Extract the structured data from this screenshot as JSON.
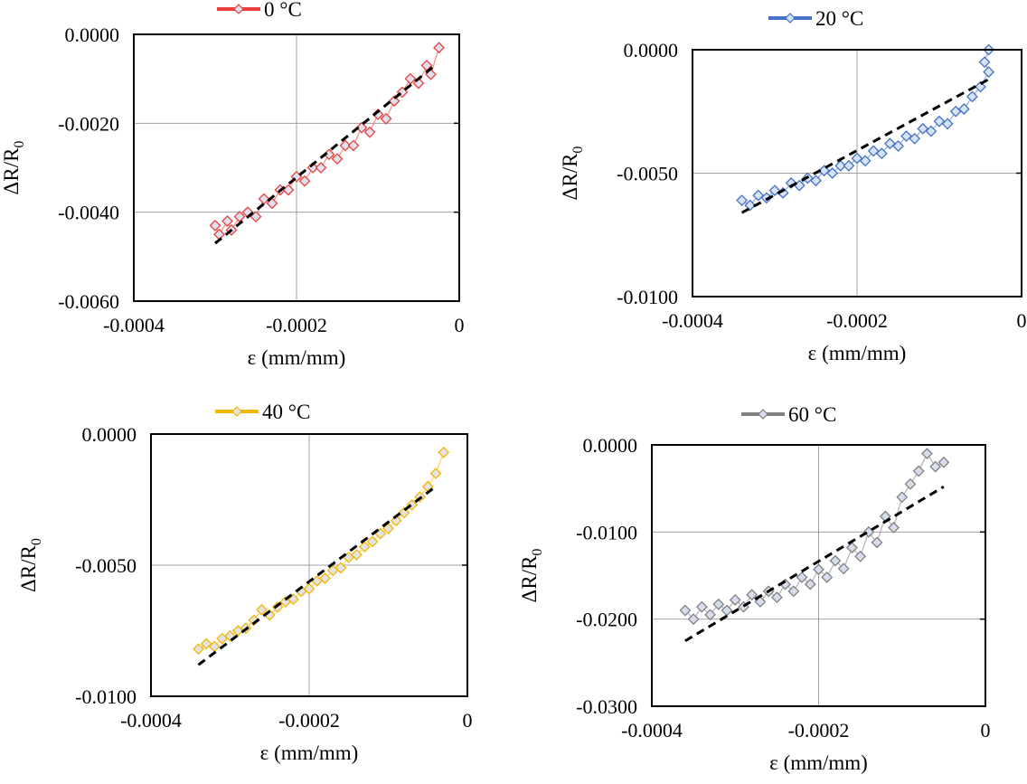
{
  "chart_data": [
    {
      "type": "scatter",
      "legend": "0 °C",
      "legend_position": "top",
      "color": "#e8403c",
      "marker": "diamond",
      "marker_fill": "#dfe1ef",
      "xlabel": "ε (mm/mm)",
      "ylabel": "ΔR/R",
      "ylabel_sub": "0",
      "xlim": [
        -0.0004,
        0
      ],
      "ylim": [
        -0.006,
        0
      ],
      "xticks": [
        "-0.0004",
        "-0.0002",
        "0"
      ],
      "yticks": [
        "0.0000",
        "-0.0020",
        "-0.0040",
        "-0.0060"
      ],
      "xtick_values": [
        -0.0004,
        -0.0002,
        0
      ],
      "ytick_values": [
        0,
        -0.002,
        -0.004,
        -0.006
      ],
      "grid": true,
      "points": [
        [
          -0.0003,
          -0.0043
        ],
        [
          -0.000295,
          -0.0045
        ],
        [
          -0.000285,
          -0.0042
        ],
        [
          -0.00028,
          -0.0044
        ],
        [
          -0.00027,
          -0.0041
        ],
        [
          -0.00026,
          -0.004
        ],
        [
          -0.00025,
          -0.0041
        ],
        [
          -0.00024,
          -0.0037
        ],
        [
          -0.00023,
          -0.0038
        ],
        [
          -0.00022,
          -0.0035
        ],
        [
          -0.00021,
          -0.0035
        ],
        [
          -0.0002,
          -0.0032
        ],
        [
          -0.00019,
          -0.0033
        ],
        [
          -0.00018,
          -0.003
        ],
        [
          -0.00017,
          -0.003
        ],
        [
          -0.00016,
          -0.0027
        ],
        [
          -0.00015,
          -0.0028
        ],
        [
          -0.00014,
          -0.0025
        ],
        [
          -0.00013,
          -0.0025
        ],
        [
          -0.00012,
          -0.0021
        ],
        [
          -0.00011,
          -0.0022
        ],
        [
          -0.0001,
          -0.0018
        ],
        [
          -9e-05,
          -0.0019
        ],
        [
          -8e-05,
          -0.0015
        ],
        [
          -7e-05,
          -0.0013
        ],
        [
          -6e-05,
          -0.001
        ],
        [
          -5e-05,
          -0.0011
        ],
        [
          -4e-05,
          -0.0007
        ],
        [
          -3.5e-05,
          -0.0009
        ],
        [
          -2.5e-05,
          -0.0003
        ]
      ],
      "trendline": [
        [
          -0.0003,
          -0.0047
        ],
        [
          -3e-05,
          -0.0007
        ]
      ]
    },
    {
      "type": "scatter",
      "legend": "20 °C",
      "legend_position": "top",
      "color": "#4472c4",
      "marker": "diamond",
      "marker_fill": "#d6e3f5",
      "xlabel": "ε (mm/mm)",
      "ylabel": "ΔR/R",
      "ylabel_sub": "0",
      "xlim": [
        -0.0004,
        0
      ],
      "ylim": [
        -0.01,
        0
      ],
      "xticks": [
        "-0.0004",
        "-0.0002",
        "0"
      ],
      "yticks": [
        "0.0000",
        "-0.0050",
        "-0.0100"
      ],
      "xtick_values": [
        -0.0004,
        -0.0002,
        0
      ],
      "ytick_values": [
        0,
        -0.005,
        -0.01
      ],
      "grid": true,
      "points": [
        [
          -0.00034,
          -0.0061
        ],
        [
          -0.00033,
          -0.0063
        ],
        [
          -0.00032,
          -0.0059
        ],
        [
          -0.00031,
          -0.006
        ],
        [
          -0.0003,
          -0.0057
        ],
        [
          -0.00029,
          -0.0058
        ],
        [
          -0.00028,
          -0.0054
        ],
        [
          -0.00027,
          -0.0055
        ],
        [
          -0.00026,
          -0.0052
        ],
        [
          -0.00025,
          -0.0053
        ],
        [
          -0.00024,
          -0.0049
        ],
        [
          -0.00023,
          -0.005
        ],
        [
          -0.00022,
          -0.0047
        ],
        [
          -0.00021,
          -0.0047
        ],
        [
          -0.0002,
          -0.0044
        ],
        [
          -0.00019,
          -0.0045
        ],
        [
          -0.00018,
          -0.0041
        ],
        [
          -0.00017,
          -0.0042
        ],
        [
          -0.00016,
          -0.0038
        ],
        [
          -0.00015,
          -0.0039
        ],
        [
          -0.00014,
          -0.0035
        ],
        [
          -0.00013,
          -0.0036
        ],
        [
          -0.00012,
          -0.0032
        ],
        [
          -0.00011,
          -0.0033
        ],
        [
          -0.0001,
          -0.0029
        ],
        [
          -9e-05,
          -0.003
        ],
        [
          -8e-05,
          -0.0025
        ],
        [
          -7e-05,
          -0.0024
        ],
        [
          -6e-05,
          -0.0019
        ],
        [
          -5e-05,
          -0.0015
        ],
        [
          -4e-05,
          -0.0009
        ],
        [
          -4.5e-05,
          -0.0005
        ],
        [
          -4e-05,
          0.0
        ]
      ],
      "trendline": [
        [
          -0.00034,
          -0.0066
        ],
        [
          -4e-05,
          -0.0012
        ]
      ]
    },
    {
      "type": "scatter",
      "legend": "40 °C",
      "legend_position": "top",
      "color": "#f2b705",
      "marker": "diamond",
      "marker_fill": "#e3e3e3",
      "xlabel": "ε (mm/mm)",
      "ylabel": "ΔR/R",
      "ylabel_sub": "0",
      "xlim": [
        -0.0004,
        0
      ],
      "ylim": [
        -0.01,
        0
      ],
      "xticks": [
        "-0.0004",
        "-0.0002",
        "0"
      ],
      "yticks": [
        "0.0000",
        "-0.0050",
        "-0.0100"
      ],
      "xtick_values": [
        -0.0004,
        -0.0002,
        0
      ],
      "ytick_values": [
        0,
        -0.005,
        -0.01
      ],
      "grid": true,
      "points": [
        [
          -0.00034,
          -0.0082
        ],
        [
          -0.00033,
          -0.008
        ],
        [
          -0.00032,
          -0.0081
        ],
        [
          -0.00031,
          -0.0078
        ],
        [
          -0.0003,
          -0.0077
        ],
        [
          -0.00029,
          -0.0075
        ],
        [
          -0.00028,
          -0.0074
        ],
        [
          -0.00027,
          -0.0071
        ],
        [
          -0.00026,
          -0.0067
        ],
        [
          -0.00025,
          -0.0069
        ],
        [
          -0.00024,
          -0.0066
        ],
        [
          -0.00023,
          -0.0064
        ],
        [
          -0.00022,
          -0.0063
        ],
        [
          -0.00021,
          -0.006
        ],
        [
          -0.0002,
          -0.0059
        ],
        [
          -0.00019,
          -0.0056
        ],
        [
          -0.00018,
          -0.0055
        ],
        [
          -0.00017,
          -0.0052
        ],
        [
          -0.00016,
          -0.0051
        ],
        [
          -0.00015,
          -0.0047
        ],
        [
          -0.00014,
          -0.0046
        ],
        [
          -0.00013,
          -0.0043
        ],
        [
          -0.00012,
          -0.0041
        ],
        [
          -0.00011,
          -0.0038
        ],
        [
          -0.0001,
          -0.0036
        ],
        [
          -9e-05,
          -0.0033
        ],
        [
          -8e-05,
          -0.003
        ],
        [
          -7e-05,
          -0.0027
        ],
        [
          -6e-05,
          -0.0024
        ],
        [
          -5e-05,
          -0.002
        ],
        [
          -4e-05,
          -0.0015
        ],
        [
          -3e-05,
          -0.0007
        ]
      ],
      "trendline": [
        [
          -0.00034,
          -0.0088
        ],
        [
          -4e-05,
          -0.002
        ]
      ]
    },
    {
      "type": "scatter",
      "legend": "60 °C",
      "legend_position": "top",
      "color": "#808080",
      "marker": "diamond",
      "marker_fill": "#d6deee",
      "xlabel": "ε (mm/mm)",
      "ylabel": "ΔR/R",
      "ylabel_sub": "0",
      "xlim": [
        -0.0004,
        0
      ],
      "ylim": [
        -0.03,
        0
      ],
      "xticks": [
        "-0.0004",
        "-0.0002",
        "0"
      ],
      "yticks": [
        "0.0000",
        "-0.0100",
        "-0.0200",
        "-0.0300"
      ],
      "xtick_values": [
        -0.0004,
        -0.0002,
        0
      ],
      "ytick_values": [
        0,
        -0.01,
        -0.02,
        -0.03
      ],
      "grid": true,
      "points": [
        [
          -0.00036,
          -0.019
        ],
        [
          -0.00035,
          -0.02
        ],
        [
          -0.00034,
          -0.0186
        ],
        [
          -0.00033,
          -0.0195
        ],
        [
          -0.00032,
          -0.0183
        ],
        [
          -0.00031,
          -0.019
        ],
        [
          -0.0003,
          -0.0178
        ],
        [
          -0.00029,
          -0.0186
        ],
        [
          -0.00028,
          -0.0172
        ],
        [
          -0.00027,
          -0.018
        ],
        [
          -0.00026,
          -0.0168
        ],
        [
          -0.00025,
          -0.0175
        ],
        [
          -0.00024,
          -0.016
        ],
        [
          -0.00023,
          -0.0168
        ],
        [
          -0.00022,
          -0.0152
        ],
        [
          -0.00021,
          -0.016
        ],
        [
          -0.0002,
          -0.0143
        ],
        [
          -0.00019,
          -0.0152
        ],
        [
          -0.00018,
          -0.0133
        ],
        [
          -0.00017,
          -0.0142
        ],
        [
          -0.00016,
          -0.0118
        ],
        [
          -0.00015,
          -0.0128
        ],
        [
          -0.00014,
          -0.01
        ],
        [
          -0.00013,
          -0.0112
        ],
        [
          -0.00012,
          -0.0082
        ],
        [
          -0.00011,
          -0.0095
        ],
        [
          -0.0001,
          -0.006
        ],
        [
          -9e-05,
          -0.0045
        ],
        [
          -8e-05,
          -0.003
        ],
        [
          -7e-05,
          -0.001
        ],
        [
          -6e-05,
          -0.0025
        ],
        [
          -5e-05,
          -0.002
        ]
      ],
      "trendline": [
        [
          -0.00036,
          -0.0225
        ],
        [
          -5e-05,
          -0.0048
        ]
      ]
    }
  ]
}
